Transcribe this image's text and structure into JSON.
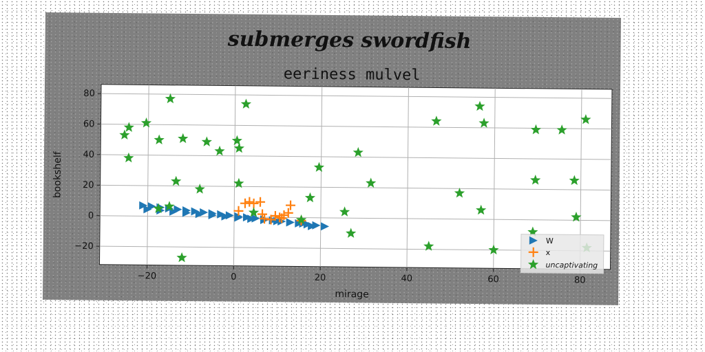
{
  "chart_data": {
    "type": "scatter",
    "suptitle": "submerges swordfish",
    "title": "eeriness mulvel",
    "xlabel": "mirage",
    "ylabel": "bookshelf",
    "xlim": [
      -31,
      87
    ],
    "ylim": [
      -32,
      86
    ],
    "xticks": [
      -20,
      0,
      20,
      40,
      60,
      80
    ],
    "yticks": [
      -20,
      0,
      20,
      40,
      60,
      80
    ],
    "grid": true,
    "legend_position": "lower-right",
    "series": [
      {
        "name": "W",
        "marker": "triangle-right",
        "color": "#1f77b4",
        "points": [
          [
            -21,
            7
          ],
          [
            -19,
            6.4
          ],
          [
            -17,
            5.8
          ],
          [
            -15,
            5.2
          ],
          [
            -13,
            4.6
          ],
          [
            -11,
            4.0
          ],
          [
            -9,
            3.4
          ],
          [
            -7,
            2.8
          ],
          [
            -5,
            2.2
          ],
          [
            -3,
            1.6
          ],
          [
            -1,
            1.0
          ],
          [
            1,
            0.4
          ],
          [
            3,
            -0.2
          ],
          [
            5,
            -0.8
          ],
          [
            7,
            -1.4
          ],
          [
            9,
            -2.0
          ],
          [
            11,
            -2.6
          ],
          [
            13,
            -3.2
          ],
          [
            15,
            -3.8
          ],
          [
            17,
            -4.4
          ],
          [
            19,
            -5.0
          ],
          [
            21,
            -5.6
          ],
          [
            -20,
            4.5
          ],
          [
            -17,
            3.8
          ],
          [
            -14,
            3.1
          ],
          [
            -11,
            2.4
          ],
          [
            -8,
            1.7
          ],
          [
            -5,
            1.0
          ],
          [
            -2,
            0.3
          ],
          [
            1,
            -0.4
          ],
          [
            4,
            -1.1
          ],
          [
            7,
            -1.8
          ],
          [
            10,
            -2.5
          ],
          [
            13,
            -3.2
          ],
          [
            16,
            -3.9
          ],
          [
            18,
            -5.5
          ]
        ]
      },
      {
        "name": "x",
        "marker": "plus",
        "color": "#ff7f0e",
        "points": [
          [
            1,
            4
          ],
          [
            2.5,
            9
          ],
          [
            3.5,
            10
          ],
          [
            4.5,
            9
          ],
          [
            6,
            10
          ],
          [
            6.5,
            2
          ],
          [
            7,
            -1
          ],
          [
            8.5,
            -1.5
          ],
          [
            9.5,
            1
          ],
          [
            10.5,
            0
          ],
          [
            11,
            -0.5
          ],
          [
            11.5,
            1.5
          ],
          [
            12.5,
            3
          ],
          [
            13,
            8
          ],
          [
            15.5,
            -2
          ]
        ]
      },
      {
        "name": "uncaptivating",
        "marker": "star",
        "color": "#2ca02c",
        "points": [
          [
            -25.5,
            53
          ],
          [
            -24.5,
            58
          ],
          [
            -24.5,
            38
          ],
          [
            -20.5,
            61
          ],
          [
            -17.5,
            50
          ],
          [
            -17.5,
            5
          ],
          [
            -15,
            6.5
          ],
          [
            -15,
            77
          ],
          [
            -13.5,
            23
          ],
          [
            -12,
            51
          ],
          [
            -12,
            -27
          ],
          [
            -8,
            18
          ],
          [
            -6.5,
            49
          ],
          [
            -3.5,
            43
          ],
          [
            0.5,
            50
          ],
          [
            1,
            45
          ],
          [
            1,
            22
          ],
          [
            2.5,
            74
          ],
          [
            4.5,
            3
          ],
          [
            15.5,
            -1.5
          ],
          [
            17.5,
            13
          ],
          [
            19.5,
            33
          ],
          [
            25.5,
            4
          ],
          [
            27,
            -10
          ],
          [
            28.5,
            43
          ],
          [
            31.5,
            23
          ],
          [
            45,
            -18
          ],
          [
            46.5,
            64
          ],
          [
            52,
            17
          ],
          [
            56.5,
            74
          ],
          [
            57,
            6
          ],
          [
            57.5,
            63
          ],
          [
            60,
            -20
          ],
          [
            69,
            -8
          ],
          [
            69.5,
            26
          ],
          [
            69.5,
            59
          ],
          [
            75.5,
            59
          ],
          [
            78.5,
            26
          ],
          [
            79,
            2
          ],
          [
            81,
            66
          ],
          [
            81.5,
            -18
          ]
        ]
      }
    ]
  }
}
